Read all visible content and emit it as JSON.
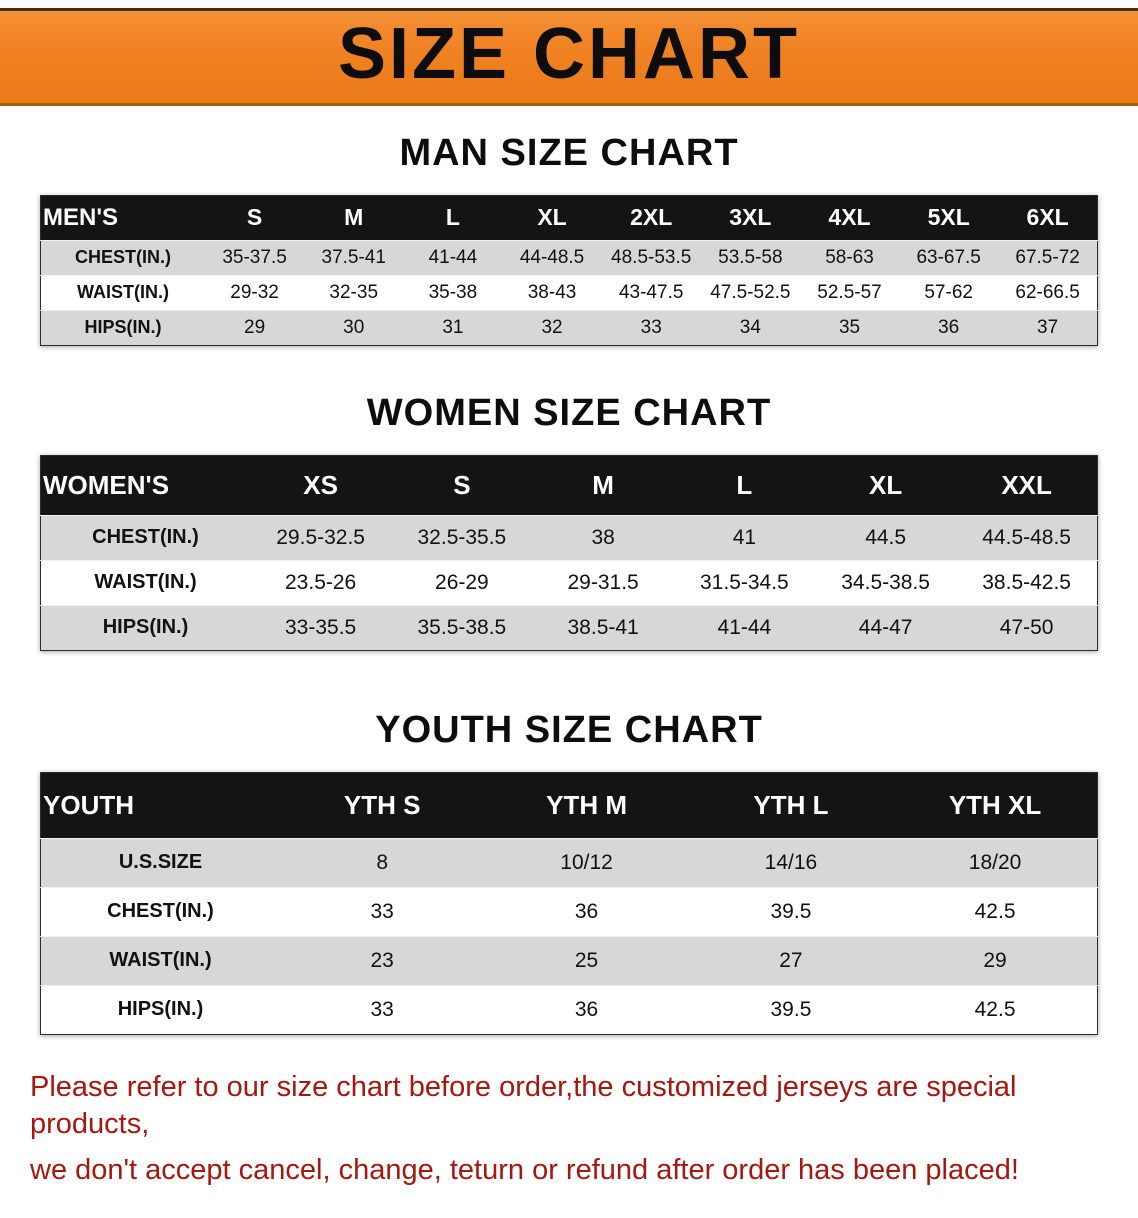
{
  "banner": {
    "title": "SIZE CHART",
    "bg_color": "#f08122",
    "text_color": "#0d0d0d"
  },
  "sections": [
    {
      "heading": "MAN SIZE CHART",
      "table": {
        "header": [
          "MEN'S",
          "S",
          "M",
          "L",
          "XL",
          "2XL",
          "3XL",
          "4XL",
          "5XL",
          "6XL"
        ],
        "rows": [
          {
            "label": "CHEST(IN.)",
            "values": [
              "35-37.5",
              "37.5-41",
              "41-44",
              "44-48.5",
              "48.5-53.5",
              "53.5-58",
              "58-63",
              "63-67.5",
              "67.5-72"
            ]
          },
          {
            "label": "WAIST(IN.)",
            "values": [
              "29-32",
              "32-35",
              "35-38",
              "38-43",
              "43-47.5",
              "47.5-52.5",
              "52.5-57",
              "57-62",
              "62-66.5"
            ]
          },
          {
            "label": "HIPS(IN.)",
            "values": [
              "29",
              "30",
              "31",
              "32",
              "33",
              "34",
              "35",
              "36",
              "37"
            ]
          }
        ]
      }
    },
    {
      "heading": "WOMEN SIZE CHART",
      "table": {
        "header": [
          "WOMEN'S",
          "XS",
          "S",
          "M",
          "L",
          "XL",
          "XXL"
        ],
        "rows": [
          {
            "label": "CHEST(IN.)",
            "values": [
              "29.5-32.5",
              "32.5-35.5",
              "38",
              "41",
              "44.5",
              "44.5-48.5"
            ]
          },
          {
            "label": "WAIST(IN.)",
            "values": [
              "23.5-26",
              "26-29",
              "29-31.5",
              "31.5-34.5",
              "34.5-38.5",
              "38.5-42.5"
            ]
          },
          {
            "label": "HIPS(IN.)",
            "values": [
              "33-35.5",
              "35.5-38.5",
              "38.5-41",
              "41-44",
              "44-47",
              "47-50"
            ]
          }
        ]
      }
    },
    {
      "heading": "YOUTH SIZE CHART",
      "table": {
        "header": [
          "YOUTH",
          "YTH S",
          "YTH M",
          "YTH L",
          "YTH XL"
        ],
        "rows": [
          {
            "label": "U.S.SIZE",
            "values": [
              "8",
              "10/12",
              "14/16",
              "18/20"
            ]
          },
          {
            "label": "CHEST(IN.)",
            "values": [
              "33",
              "36",
              "39.5",
              "42.5"
            ]
          },
          {
            "label": "WAIST(IN.)",
            "values": [
              "23",
              "25",
              "27",
              "29"
            ]
          },
          {
            "label": "HIPS(IN.)",
            "values": [
              "33",
              "36",
              "39.5",
              "42.5"
            ]
          }
        ]
      }
    }
  ],
  "footer": {
    "line1": "Please refer to our size chart before order,the customized jerseys are special products,",
    "line2": "we don't accept cancel, change, teturn or refund after order has been placed!",
    "text_color": "#a6170f"
  }
}
